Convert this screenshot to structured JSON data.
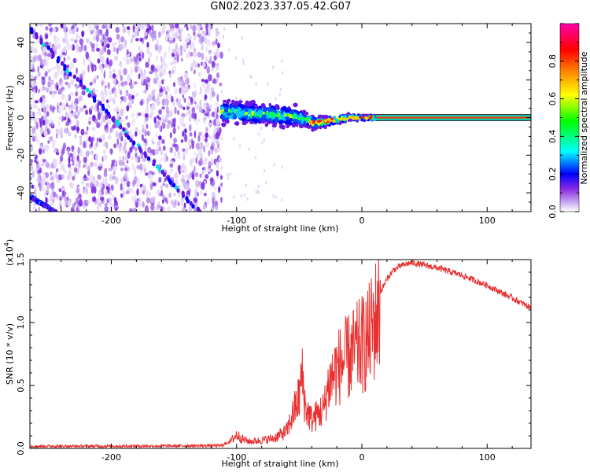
{
  "title": "GN02.2023.337.05.42.G07",
  "spectrogram": {
    "xlabel": "Height of straight line (km)",
    "ylabel": "Frequency (Hz)",
    "xlim": [
      -265,
      135
    ],
    "ylim": [
      -50,
      50
    ],
    "xticks": [
      -200,
      -100,
      0,
      100
    ],
    "yticks": [
      -40,
      -20,
      0,
      20,
      40
    ]
  },
  "colorbar": {
    "label": "Normalized spectral amplitude",
    "range": [
      0,
      1
    ],
    "ticks": [
      "0.0",
      "0.2",
      "0.4",
      "0.6",
      "0.8"
    ],
    "colormap": [
      "#ffffff",
      "#c8a8f0",
      "#8a2be2",
      "#0000ff",
      "#00ffff",
      "#00ff00",
      "#ffff00",
      "#ff8000",
      "#ff0000",
      "#ff00aa"
    ]
  },
  "snr": {
    "xlabel": "Height of straight line (km)",
    "ylabel": "SNR (10 * v/v)",
    "exponent_label": "(x10",
    "exponent_power": "4",
    "exponent_close": ")",
    "xlim": [
      -265,
      135
    ],
    "ylim": [
      0,
      15000
    ],
    "xticks": [
      -200,
      -100,
      0,
      100
    ],
    "yticks": [
      "0.0",
      "0.5",
      "1.0",
      "1.5"
    ],
    "line_color": "#e83030"
  },
  "chart_data": [
    {
      "type": "heatmap",
      "title": "GN02.2023.337.05.42.G07",
      "xlabel": "Height of straight line (km)",
      "ylabel": "Frequency (Hz)",
      "xlim": [
        -265,
        135
      ],
      "ylim": [
        -50,
        50
      ],
      "colorbar_label": "Normalized spectral amplitude",
      "colorbar_range": [
        0,
        1
      ],
      "features": {
        "noise_region_x": [
          -265,
          -112
        ],
        "diagonal_trace_1": {
          "x": [
            -265,
            -130
          ],
          "y": [
            47,
            -50
          ]
        },
        "diagonal_trace_2": {
          "x": [
            -265,
            -245
          ],
          "y": [
            -42,
            -50
          ]
        },
        "signal_band": {
          "x": [
            -112,
            -80,
            -60,
            -45,
            -38,
            -30,
            -20,
            -10,
            0,
            10,
            135
          ],
          "y_center": [
            3,
            2,
            1,
            -1,
            -3,
            -2,
            -1,
            0,
            0,
            0,
            0
          ],
          "half_width_hz": [
            5,
            5,
            5,
            3.5,
            3,
            2.5,
            2,
            1.5,
            1,
            1,
            1
          ]
        }
      }
    },
    {
      "type": "line",
      "title": "",
      "xlabel": "Height of straight line (km)",
      "ylabel": "SNR (10 * v/v)",
      "xlim": [
        -265,
        135
      ],
      "ylim": [
        0,
        15000
      ],
      "series": [
        {
          "x": [
            -265,
            -200,
            -150,
            -112,
            -105,
            -100,
            -95,
            -90,
            -80,
            -70,
            -60,
            -55,
            -50,
            -48,
            -45,
            -40,
            -35,
            -30,
            -28,
            -25,
            -20,
            -15,
            -10,
            -5,
            0,
            5,
            10,
            15,
            20,
            25,
            30,
            35,
            40,
            45,
            50,
            60,
            70,
            80,
            90,
            100,
            110,
            120,
            135
          ],
          "values": [
            200,
            200,
            220,
            250,
            600,
            1200,
            800,
            600,
            700,
            900,
            1500,
            3000,
            4500,
            6500,
            3500,
            2500,
            3000,
            3500,
            5000,
            6000,
            7000,
            7500,
            8000,
            8500,
            9000,
            9500,
            11000,
            12500,
            13500,
            14200,
            14500,
            14700,
            14800,
            14700,
            14600,
            14400,
            14100,
            13800,
            13400,
            13000,
            12500,
            12000,
            11200
          ]
        }
      ]
    }
  ]
}
